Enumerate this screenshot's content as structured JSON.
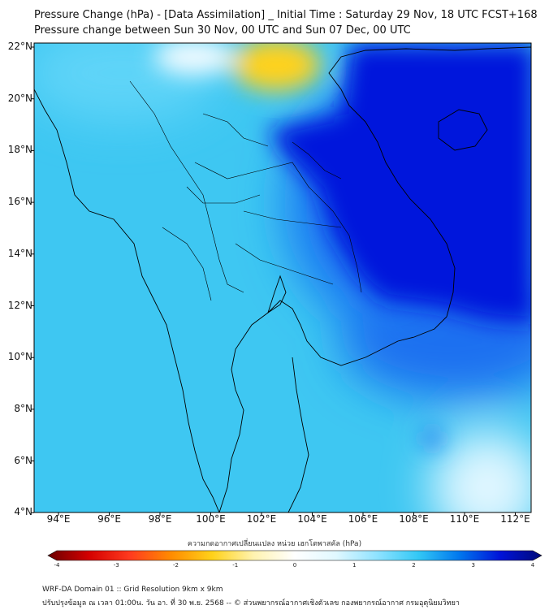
{
  "title_line1": "Pressure Change (hPa) - [Data Assimilation] _ Initial Time : Saturday 29 Nov, 18 UTC FCST+168",
  "title_line2": "Pressure change between Sun 30 Nov, 00 UTC and Sun 07 Dec, 00 UTC",
  "lat_labels": [
    "22°N",
    "20°N",
    "18°N",
    "16°N",
    "14°N",
    "12°N",
    "10°N",
    "8°N",
    "6°N",
    "4°N"
  ],
  "lon_labels": [
    "94°E",
    "96°E",
    "98°E",
    "100°E",
    "102°E",
    "104°E",
    "106°E",
    "108°E",
    "110°E",
    "112°E"
  ],
  "colorbar": {
    "label": "ความกดอากาศเปลี่ยนแปลง หน่วย เฮกโตพาสคัล (hPa)",
    "ticks": [
      "-4",
      "-3",
      "-2",
      "-1",
      "0",
      "1",
      "2",
      "3",
      "4"
    ],
    "min": -4,
    "max": 4,
    "colors": [
      "#6b0000",
      "#d40000",
      "#ff3b1f",
      "#ff8c00",
      "#ffd21a",
      "#fff3b0",
      "#ffffff",
      "#e0f8ff",
      "#8fe3ff",
      "#33c8f5",
      "#0077ee",
      "#0012d8",
      "#000a7a"
    ]
  },
  "footer_line1": "WRF-DA Domain 01 :: Grid Resolution 9km x 9km",
  "footer_line2": "ปรับปรุงข้อมูล ณ เวลา 01:00น. วัน อา. ที่ 30 พ.ย. 2568 -- © ส่วนพยากรณ์อากาศเชิงตัวเลข กองพยากรณ์อากาศ กรมอุตุนิยมวิทยา",
  "map_colors": {
    "base": "#3ec7f2",
    "positive_strong": "#0014dc",
    "positive_medium": "#1f6ff0",
    "negative": "#ffd21a",
    "near_zero": "#f2fbff",
    "coastline": "#000000"
  }
}
